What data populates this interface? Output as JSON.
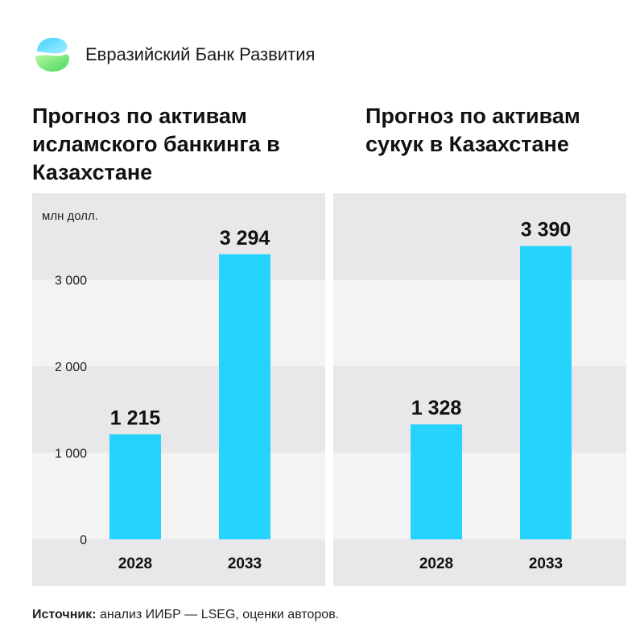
{
  "header": {
    "bank_name": "Евразийский Банк Развития",
    "logo_colors": [
      "#3fd3ff",
      "#5fe06a"
    ]
  },
  "colors": {
    "bar": "#26d3fc",
    "band_dark": "#e8e8ea",
    "band_light": "#f3f3f4",
    "text": "#111111"
  },
  "chart_data": [
    {
      "type": "bar",
      "title": "Прогноз по активам исламского банкинга в Казахстане",
      "unit_label": "млн долл.",
      "categories": [
        "2028",
        "2033"
      ],
      "values": [
        1215,
        3294
      ],
      "value_labels": [
        "1 215",
        "3 294"
      ],
      "ylim": [
        0,
        4000
      ],
      "yticks": [
        0,
        1000,
        2000,
        3000
      ],
      "ytick_labels": [
        "0",
        "1 000",
        "2 000",
        "3 000"
      ],
      "grid": "alternating bands"
    },
    {
      "type": "bar",
      "title": "Прогноз по активам сукук в Казахстане",
      "categories": [
        "2028",
        "2033"
      ],
      "values": [
        1328,
        3390
      ],
      "value_labels": [
        "1 328",
        "3 390"
      ],
      "ylim": [
        0,
        4000
      ],
      "grid": "alternating bands"
    }
  ],
  "source": {
    "label": "Источник:",
    "text": " анализ ИИБР — LSEG, оценки авторов."
  }
}
